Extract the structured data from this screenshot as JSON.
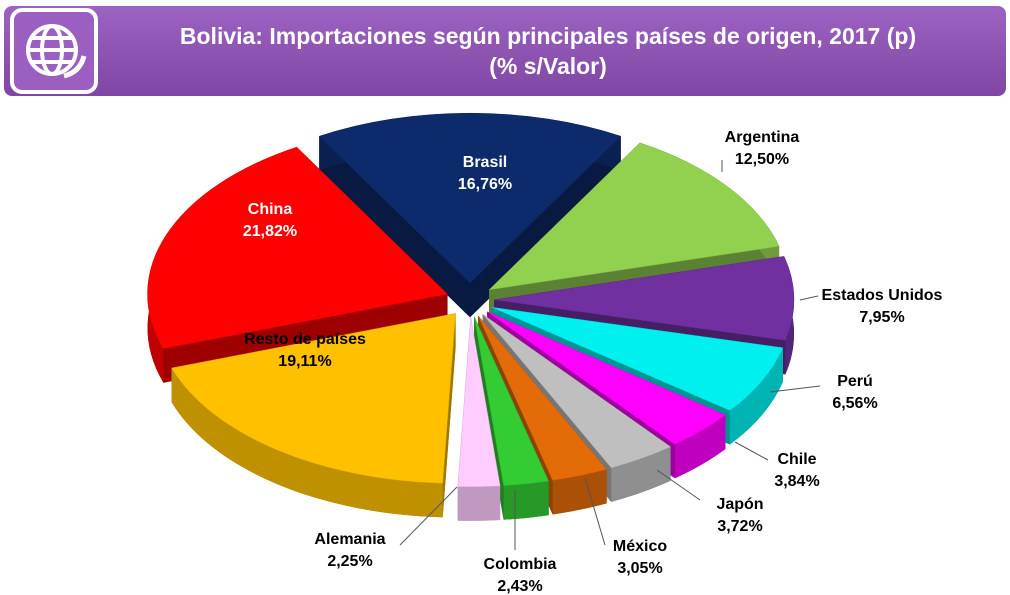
{
  "chart_data": {
    "type": "pie",
    "title": "Bolivia: Importaciones según principales países de origen, 2017 (p)",
    "subtitle": "(% s/Valor)",
    "categories": [
      "Brasil",
      "Argentina",
      "Estados Unidos",
      "Perú",
      "Chile",
      "Japón",
      "México",
      "Colombia",
      "Alemania",
      "Resto de países",
      "China"
    ],
    "values": [
      16.76,
      12.5,
      7.95,
      6.56,
      3.84,
      3.72,
      3.05,
      2.43,
      2.25,
      19.11,
      21.82
    ],
    "value_labels": [
      "16,76%",
      "12,50%",
      "7,95%",
      "6,56%",
      "3,84%",
      "3,72%",
      "3,05%",
      "2,43%",
      "2,25%",
      "19,11%",
      "21,82%"
    ],
    "colors": [
      "#0d2a6b",
      "#92d050",
      "#7030a0",
      "#00f0f0",
      "#ff00ff",
      "#bfbfbf",
      "#e36c09",
      "#33cc33",
      "#ffccff",
      "#ffc000",
      "#ff0000"
    ]
  }
}
